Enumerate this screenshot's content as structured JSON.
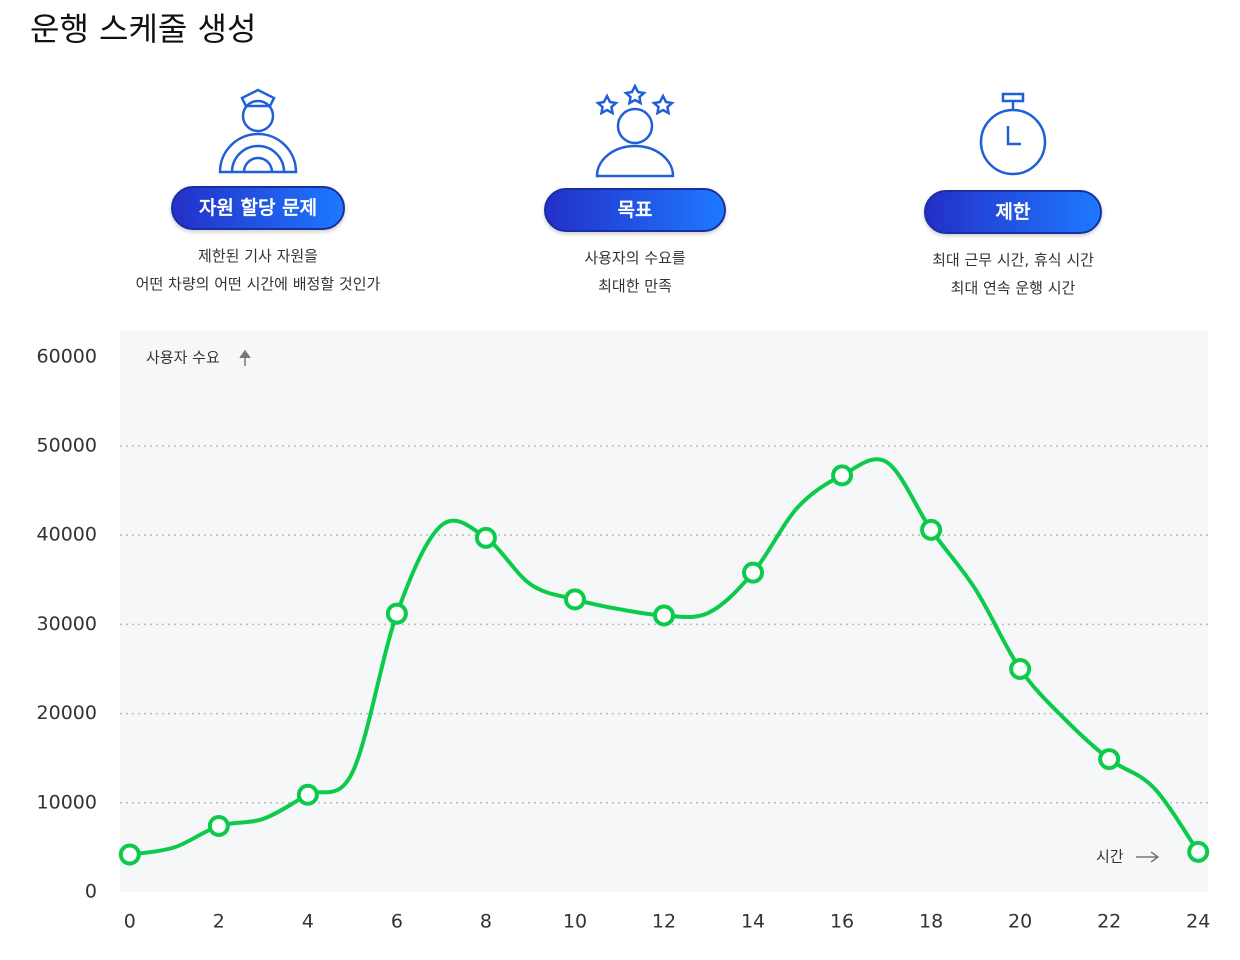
{
  "title": "운행 스케줄 생성",
  "cards": [
    {
      "label": "자원 할당 문제",
      "lines": [
        "제한된 기사 자원을",
        "어떤 차량의 어떤 시간에 배정할 것인가"
      ]
    },
    {
      "label": "목표",
      "lines": [
        "사용자의 수요를",
        "최대한 만족"
      ]
    },
    {
      "label": "제한",
      "lines": [
        "최대 근무 시간, 휴식 시간",
        "최대 연속 운행 시간"
      ]
    }
  ],
  "chart_data": {
    "type": "line",
    "y_label": "사용자 수요",
    "x_label": "시간",
    "x": [
      0,
      1,
      2,
      3,
      4,
      5,
      6,
      7,
      8,
      9,
      10,
      11,
      12,
      13,
      14,
      15,
      16,
      17,
      18,
      19,
      20,
      21,
      22,
      23,
      24
    ],
    "series": [
      {
        "color": "#0ccb4a",
        "values": [
          4200,
          5000,
          7400,
          8200,
          10900,
          13400,
          31200,
          41100,
          39700,
          34500,
          32800,
          31700,
          31000,
          31300,
          35800,
          43100,
          46700,
          48200,
          40600,
          33900,
          25000,
          19400,
          14900,
          11700,
          4500
        ]
      }
    ],
    "xlim": [
      -0.22,
      24.22
    ],
    "xticks": [
      0,
      2,
      4,
      6,
      8,
      10,
      12,
      14,
      16,
      18,
      20,
      22,
      24
    ],
    "ylim": [
      0,
      63000
    ],
    "yticks": [
      0,
      10000,
      20000,
      30000,
      40000,
      50000,
      60000
    ],
    "grid": true
  }
}
